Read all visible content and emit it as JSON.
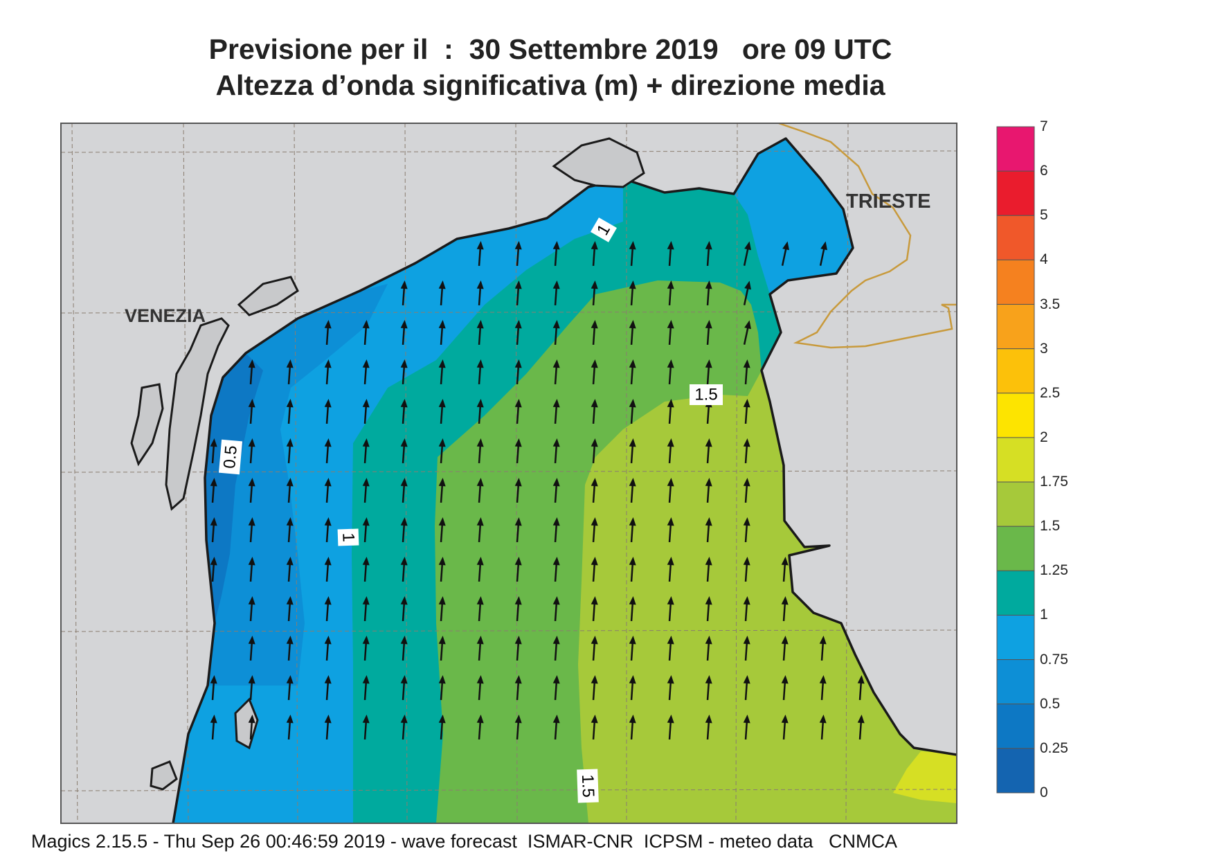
{
  "title": {
    "line1": "Previsione per il  :  30 Settembre 2019   ore 09 UTC",
    "line2": "Altezza d’onda significativa (m) + direzione media"
  },
  "map": {
    "place_labels": {
      "venezia": "VENEZIA",
      "trieste": "TRIESTE"
    },
    "contour_labels": [
      "1",
      "0.5",
      "1",
      "1.5",
      "1.5"
    ],
    "mean_wave_direction": "north (slightly north-east near the eastern coast)"
  },
  "colorbar": {
    "levels": [
      {
        "label": "7",
        "color": "#e8176f"
      },
      {
        "label": "6",
        "color": "#ea1c2d"
      },
      {
        "label": "5",
        "color": "#f0582a"
      },
      {
        "label": "4",
        "color": "#f5811f"
      },
      {
        "label": "3.5",
        "color": "#f8a21b"
      },
      {
        "label": "3",
        "color": "#fcc10a"
      },
      {
        "label": "2.5",
        "color": "#fde400"
      },
      {
        "label": "2",
        "color": "#d6df24"
      },
      {
        "label": "1.75",
        "color": "#a6c93a"
      },
      {
        "label": "1.5",
        "color": "#6ab84a"
      },
      {
        "label": "1.25",
        "color": "#00aa9e"
      },
      {
        "label": "1",
        "color": "#0ea1e1"
      },
      {
        "label": "0.75",
        "color": "#0d8fd6"
      },
      {
        "label": "0.5",
        "color": "#0d78c4"
      },
      {
        "label": "0.25",
        "color": "#1464b0"
      },
      {
        "label": "0",
        "color": ""
      }
    ]
  },
  "colors": {
    "land": "#d4d5d7",
    "frame": "#555555",
    "border": "#c89a3c",
    "coast": "#1a1a1a"
  },
  "footer": "Magics 2.15.5 - Thu Sep 26 00:46:59 2019 - wave forecast  ISMAR-CNR  ICPSM - meteo data   CNMCA"
}
